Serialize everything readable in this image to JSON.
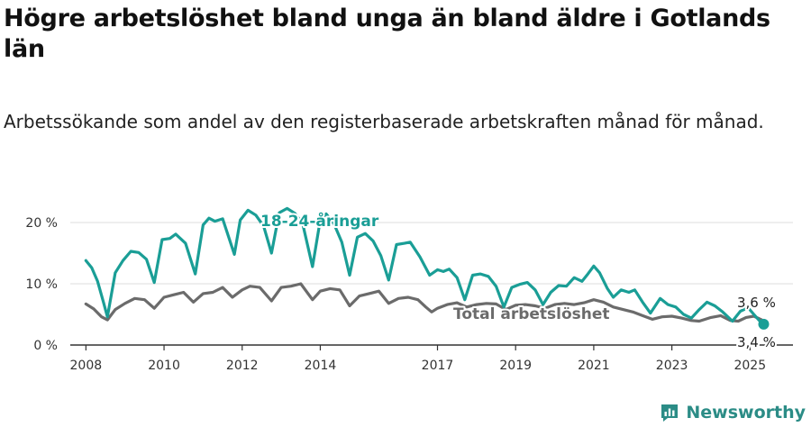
{
  "title": "Högre arbetslöshet bland unga än bland äldre i Gotlands län",
  "subtitle": "Arbetssökande som andel av den registerbaserade arbetskraften månad för månad.",
  "brand": {
    "name": "Newsworthy"
  },
  "colors": {
    "youth": "#1a9e96",
    "total": "#6b6b6b",
    "grid": "#dddddd",
    "axis": "#333333"
  },
  "chart_data": {
    "type": "line",
    "title": "Högre arbetslöshet bland unga än bland äldre i Gotlands län",
    "ylim": [
      0,
      22.5
    ],
    "xlim": [
      2007.6,
      2026.1
    ],
    "yticks": [
      {
        "value": 0,
        "label": "0 %"
      },
      {
        "value": 10,
        "label": "10 %"
      },
      {
        "value": 20,
        "label": "20 %"
      }
    ],
    "xticks": [
      {
        "value": 2008,
        "label": "2008"
      },
      {
        "value": 2010,
        "label": "2010"
      },
      {
        "value": 2012,
        "label": "2012"
      },
      {
        "value": 2014,
        "label": "2014"
      },
      {
        "value": 2017,
        "label": "2017"
      },
      {
        "value": 2019,
        "label": "2019"
      },
      {
        "value": 2021,
        "label": "2021"
      },
      {
        "value": 2023,
        "label": "2023"
      },
      {
        "value": 2025,
        "label": "2025"
      }
    ],
    "series": [
      {
        "name": "18-24-åringar",
        "key": "youth",
        "points": [
          [
            2008.0,
            13.8
          ],
          [
            2008.15,
            12.6
          ],
          [
            2008.3,
            10.4
          ],
          [
            2008.45,
            7.0
          ],
          [
            2008.55,
            4.6
          ],
          [
            2008.75,
            11.8
          ],
          [
            2008.95,
            13.8
          ],
          [
            2009.15,
            15.3
          ],
          [
            2009.35,
            15.1
          ],
          [
            2009.55,
            14.0
          ],
          [
            2009.75,
            10.2
          ],
          [
            2009.95,
            17.2
          ],
          [
            2010.15,
            17.4
          ],
          [
            2010.3,
            18.1
          ],
          [
            2010.55,
            16.6
          ],
          [
            2010.8,
            11.6
          ],
          [
            2011.0,
            19.6
          ],
          [
            2011.15,
            20.7
          ],
          [
            2011.3,
            20.2
          ],
          [
            2011.5,
            20.6
          ],
          [
            2011.8,
            14.8
          ],
          [
            2011.95,
            20.4
          ],
          [
            2012.15,
            22.0
          ],
          [
            2012.35,
            21.2
          ],
          [
            2012.55,
            19.4
          ],
          [
            2012.75,
            15.0
          ],
          [
            2012.95,
            21.6
          ],
          [
            2013.15,
            22.3
          ],
          [
            2013.35,
            21.5
          ],
          [
            2013.55,
            19.8
          ],
          [
            2013.8,
            12.8
          ],
          [
            2014.0,
            20.4
          ],
          [
            2014.15,
            21.4
          ],
          [
            2014.35,
            19.8
          ],
          [
            2014.55,
            16.8
          ],
          [
            2014.75,
            11.4
          ],
          [
            2014.95,
            17.6
          ],
          [
            2015.15,
            18.2
          ],
          [
            2015.35,
            17.0
          ],
          [
            2015.55,
            14.6
          ],
          [
            2015.75,
            10.6
          ],
          [
            2015.95,
            16.4
          ],
          [
            2016.15,
            16.6
          ],
          [
            2016.3,
            16.8
          ],
          [
            2016.55,
            14.4
          ],
          [
            2016.8,
            11.4
          ],
          [
            2017.0,
            12.3
          ],
          [
            2017.15,
            12.0
          ],
          [
            2017.3,
            12.4
          ],
          [
            2017.5,
            11.0
          ],
          [
            2017.7,
            7.4
          ],
          [
            2017.9,
            11.4
          ],
          [
            2018.1,
            11.6
          ],
          [
            2018.3,
            11.2
          ],
          [
            2018.5,
            9.6
          ],
          [
            2018.7,
            6.2
          ],
          [
            2018.9,
            9.4
          ],
          [
            2019.1,
            9.9
          ],
          [
            2019.3,
            10.2
          ],
          [
            2019.5,
            9.0
          ],
          [
            2019.7,
            6.6
          ],
          [
            2019.9,
            8.6
          ],
          [
            2020.1,
            9.7
          ],
          [
            2020.3,
            9.6
          ],
          [
            2020.5,
            11.0
          ],
          [
            2020.7,
            10.4
          ],
          [
            2020.85,
            11.6
          ],
          [
            2021.0,
            12.9
          ],
          [
            2021.15,
            11.8
          ],
          [
            2021.35,
            9.2
          ],
          [
            2021.5,
            7.8
          ],
          [
            2021.7,
            9.0
          ],
          [
            2021.9,
            8.6
          ],
          [
            2022.05,
            9.0
          ],
          [
            2022.25,
            7.0
          ],
          [
            2022.45,
            5.2
          ],
          [
            2022.7,
            7.6
          ],
          [
            2022.9,
            6.6
          ],
          [
            2023.1,
            6.2
          ],
          [
            2023.3,
            5.0
          ],
          [
            2023.5,
            4.4
          ],
          [
            2023.7,
            5.8
          ],
          [
            2023.9,
            7.0
          ],
          [
            2024.1,
            6.4
          ],
          [
            2024.3,
            5.4
          ],
          [
            2024.55,
            3.9
          ],
          [
            2024.75,
            5.5
          ],
          [
            2024.95,
            6.1
          ],
          [
            2025.1,
            5.0
          ],
          [
            2025.25,
            3.9
          ],
          [
            2025.35,
            3.4
          ]
        ],
        "end_label": "3,4 %",
        "label": "18-24-åringar"
      },
      {
        "name": "Total arbetslöshet",
        "key": "total",
        "points": [
          [
            2008.0,
            6.7
          ],
          [
            2008.2,
            5.9
          ],
          [
            2008.4,
            4.6
          ],
          [
            2008.55,
            4.1
          ],
          [
            2008.75,
            5.8
          ],
          [
            2009.0,
            6.8
          ],
          [
            2009.25,
            7.6
          ],
          [
            2009.5,
            7.4
          ],
          [
            2009.75,
            6.0
          ],
          [
            2010.0,
            7.8
          ],
          [
            2010.25,
            8.2
          ],
          [
            2010.5,
            8.6
          ],
          [
            2010.75,
            7.0
          ],
          [
            2011.0,
            8.4
          ],
          [
            2011.25,
            8.6
          ],
          [
            2011.5,
            9.4
          ],
          [
            2011.75,
            7.8
          ],
          [
            2012.0,
            9.0
          ],
          [
            2012.2,
            9.6
          ],
          [
            2012.45,
            9.4
          ],
          [
            2012.75,
            7.2
          ],
          [
            2013.0,
            9.4
          ],
          [
            2013.25,
            9.6
          ],
          [
            2013.5,
            10.0
          ],
          [
            2013.8,
            7.4
          ],
          [
            2014.0,
            8.8
          ],
          [
            2014.25,
            9.2
          ],
          [
            2014.5,
            9.0
          ],
          [
            2014.75,
            6.4
          ],
          [
            2015.0,
            8.0
          ],
          [
            2015.25,
            8.4
          ],
          [
            2015.5,
            8.8
          ],
          [
            2015.75,
            6.8
          ],
          [
            2016.0,
            7.6
          ],
          [
            2016.25,
            7.8
          ],
          [
            2016.5,
            7.4
          ],
          [
            2016.7,
            6.2
          ],
          [
            2016.85,
            5.4
          ],
          [
            2017.0,
            6.0
          ],
          [
            2017.25,
            6.6
          ],
          [
            2017.5,
            6.9
          ],
          [
            2017.75,
            6.2
          ],
          [
            2018.0,
            6.6
          ],
          [
            2018.25,
            6.8
          ],
          [
            2018.5,
            6.7
          ],
          [
            2018.75,
            5.8
          ],
          [
            2019.0,
            6.5
          ],
          [
            2019.25,
            6.6
          ],
          [
            2019.5,
            6.4
          ],
          [
            2019.75,
            6.0
          ],
          [
            2020.0,
            6.6
          ],
          [
            2020.25,
            6.8
          ],
          [
            2020.5,
            6.6
          ],
          [
            2020.75,
            6.9
          ],
          [
            2021.0,
            7.4
          ],
          [
            2021.25,
            7.0
          ],
          [
            2021.5,
            6.2
          ],
          [
            2021.75,
            5.8
          ],
          [
            2022.0,
            5.4
          ],
          [
            2022.25,
            4.8
          ],
          [
            2022.5,
            4.2
          ],
          [
            2022.75,
            4.6
          ],
          [
            2023.0,
            4.7
          ],
          [
            2023.25,
            4.4
          ],
          [
            2023.5,
            4.0
          ],
          [
            2023.7,
            3.9
          ],
          [
            2024.0,
            4.5
          ],
          [
            2024.25,
            4.8
          ],
          [
            2024.5,
            4.0
          ],
          [
            2024.7,
            3.9
          ],
          [
            2024.9,
            4.5
          ],
          [
            2025.1,
            4.7
          ],
          [
            2025.3,
            4.1
          ],
          [
            2025.35,
            3.6
          ]
        ],
        "end_label": "3,6 %",
        "label": "Total arbetslöshet"
      }
    ]
  }
}
